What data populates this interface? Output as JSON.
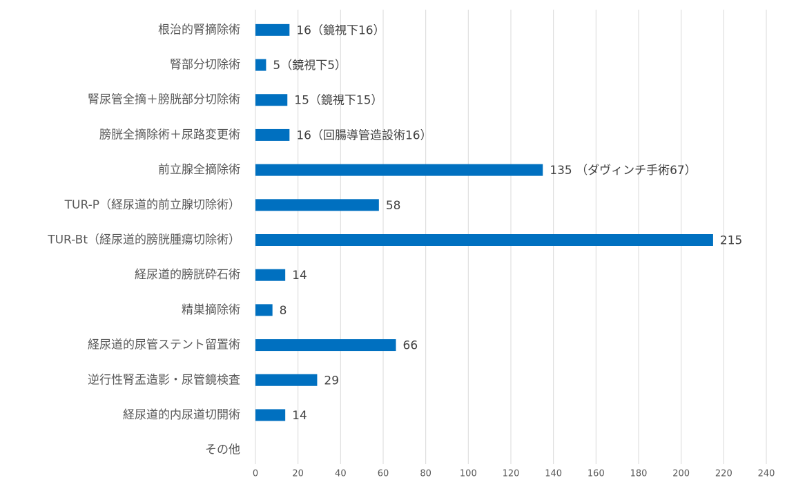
{
  "chart_data": {
    "type": "hbar",
    "categories": [
      "根治的腎摘除術",
      "腎部分切除術",
      "腎尿管全摘＋膀胱部分切除術",
      "膀胱全摘除術＋尿路変更術",
      "前立腺全摘除術",
      "TUR-P（経尿道的前立腺切除術）",
      "TUR-Bt（経尿道的膀胱腫瘍切除術）",
      "経尿道的膀胱砕石術",
      "精巣摘除術",
      "経尿道的尿管ステント留置術",
      "逆行性腎盂造影・尿管鏡検査",
      "経尿道的内尿道切開術",
      "その他"
    ],
    "values": [
      16,
      5,
      15,
      16,
      135,
      58,
      215,
      14,
      8,
      66,
      29,
      14,
      null
    ],
    "value_labels": [
      "16（鏡視下16）",
      "5（鏡視下5）",
      "15（鏡視下15）",
      "16（回腸導管造設術16）",
      "135 （ダヴィンチ手術67）",
      "58",
      "215",
      "14",
      "8",
      "66",
      "29",
      "14",
      null
    ],
    "color": "#0070c0",
    "xlim": [
      0,
      240
    ],
    "xticks": [
      0,
      20,
      40,
      60,
      80,
      100,
      120,
      140,
      160,
      180,
      200,
      220,
      240
    ],
    "grid": true
  }
}
